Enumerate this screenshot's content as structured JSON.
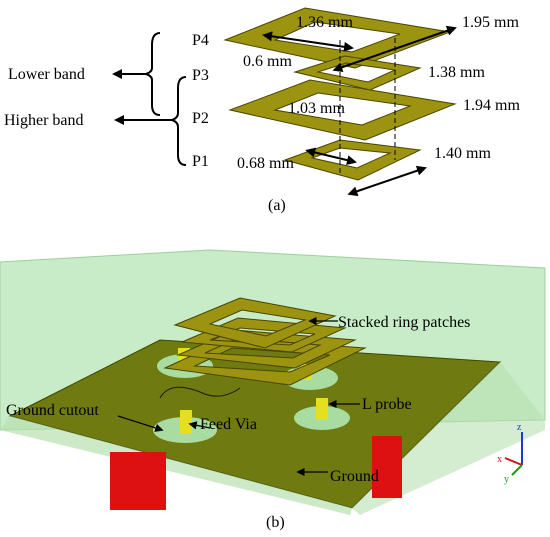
{
  "panel_a": {
    "patches": [
      "P4",
      "P3",
      "P2",
      "P1"
    ],
    "bands": [
      "Lower band",
      "Higher band"
    ],
    "dimensions": [
      "1.36 mm",
      "1.95 mm",
      "0.6 mm",
      "1.38 mm",
      "1.03 mm",
      "1.94 mm",
      "0.68 mm",
      "1.40 mm"
    ],
    "caption": "(a)"
  },
  "panel_b": {
    "labels": [
      "Stacked ring patches",
      "L probe",
      "Ground cutout",
      "Feed Via",
      "Ground"
    ],
    "axes": [
      "z",
      "x",
      "y"
    ],
    "caption": "(b)"
  }
}
